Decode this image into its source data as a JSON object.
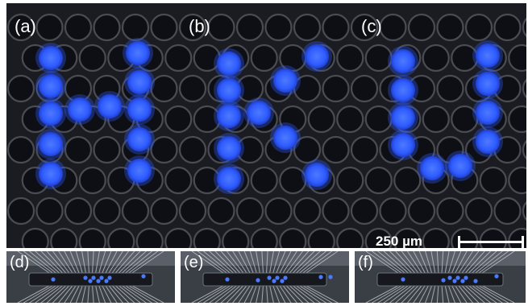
{
  "labels": {
    "a": "(a)",
    "b": "(b)",
    "c": "(c)",
    "d": "(d)",
    "e": "(e)",
    "f": "(f)"
  },
  "scale_bar": {
    "text": "250 µm"
  },
  "colors": {
    "lit_led": "#2f5cff",
    "lit_led_core": "#3a67ff",
    "background": "#1b1c22",
    "well_rim": "#4a4c52",
    "well_inner": "#0e0f14"
  },
  "patterns": {
    "a": "H",
    "b": "K",
    "c": "U"
  }
}
